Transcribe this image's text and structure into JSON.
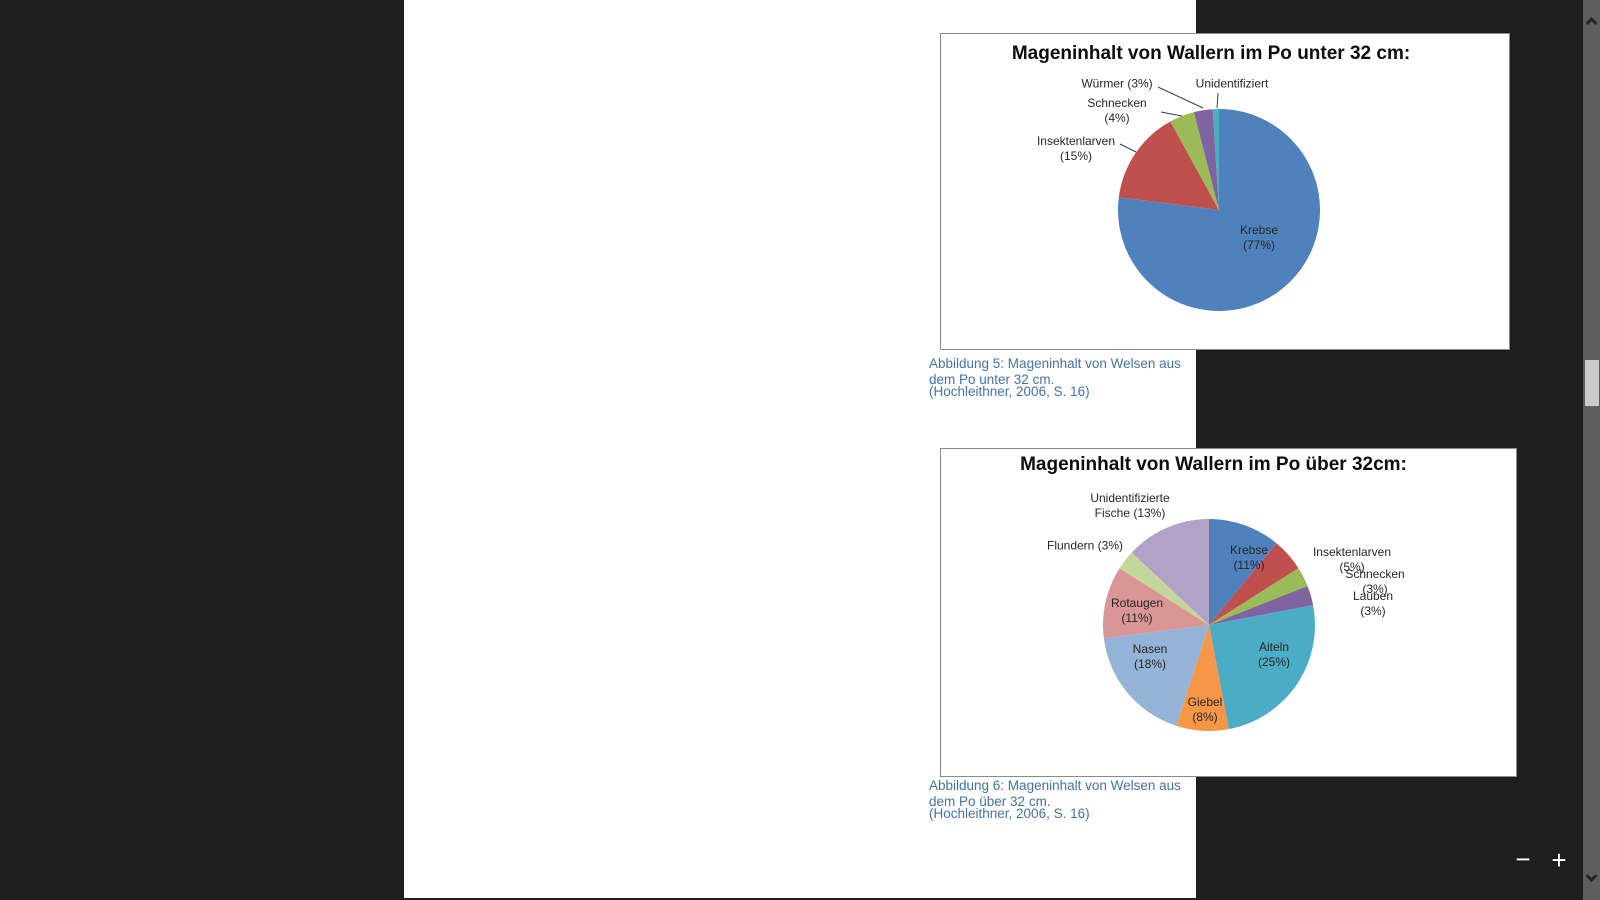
{
  "viewer": {
    "background_color": "#1e1e1e",
    "page_color": "#ffffff",
    "zoom_controls": {
      "zoom_out": "−",
      "zoom_in": "+"
    },
    "scrollbar": {
      "track_color": "#5e5e5e",
      "thumb_color": "#cbcbcb"
    }
  },
  "document": {
    "caption_color": "#4472a8",
    "captions": [
      {
        "title": "Abbildung 5: Mageninhalt von Welsen aus dem Po unter 32 cm.",
        "source": "(Hochleithner, 2006, S. 16)"
      },
      {
        "title": "Abbildung 6: Mageninhalt von Welsen aus dem Po über 32 cm.",
        "source": "(Hochleithner, 2006, S. 16)"
      }
    ]
  },
  "chart_data": [
    {
      "type": "pie",
      "title": "Mageninhalt von Wallern im Po unter 32 cm:",
      "unit": "%",
      "direction": "clockwise",
      "start_angle_deg": 0,
      "legend": "none",
      "slices": [
        {
          "label": "Krebse",
          "value": 77,
          "color": "#4F81BD"
        },
        {
          "label": "Insektenlarven",
          "value": 15,
          "color": "#C0504D"
        },
        {
          "label": "Schnecken",
          "value": 4,
          "color": "#9BBB59"
        },
        {
          "label": "Würmer",
          "value": 3,
          "color": "#8064A2"
        },
        {
          "label": "Unidentifiziert",
          "value": 1,
          "color": "#4BACC6"
        }
      ],
      "display_labels": [
        {
          "text": "Würmer (3%)"
        },
        {
          "text": "Unidentifiziert"
        },
        {
          "text": "Schnecken (4%)"
        },
        {
          "text": "Insektenlarven\n(15%)"
        },
        {
          "text": "Krebse (77%)"
        }
      ]
    },
    {
      "type": "pie",
      "title": "Mageninhalt von Wallern im Po über 32cm:",
      "unit": "%",
      "direction": "clockwise",
      "start_angle_deg": 0,
      "legend": "none",
      "slices": [
        {
          "label": "Krebse",
          "value": 11,
          "color": "#4F81BD"
        },
        {
          "label": "Insektenlarven",
          "value": 5,
          "color": "#C0504D"
        },
        {
          "label": "Schnecken",
          "value": 3,
          "color": "#9BBB59"
        },
        {
          "label": "Lauben",
          "value": 3,
          "color": "#8064A2"
        },
        {
          "label": "Aiteln",
          "value": 25,
          "color": "#4BACC6"
        },
        {
          "label": "Giebel",
          "value": 8,
          "color": "#F79646"
        },
        {
          "label": "Nasen",
          "value": 18,
          "color": "#95B3D7"
        },
        {
          "label": "Rotaugen",
          "value": 11,
          "color": "#D99694"
        },
        {
          "label": "Flundern",
          "value": 3,
          "color": "#C3D69B"
        },
        {
          "label": "Unidentifizierte Fische",
          "value": 13,
          "color": "#B2A2C7"
        }
      ],
      "display_labels": [
        {
          "text": "Unidentifizierte\nFische (13%)"
        },
        {
          "text": "Flundern (3%)"
        },
        {
          "text": "Rotaugen\n(11%)"
        },
        {
          "text": "Nasen (18%)"
        },
        {
          "text": "Giebel\n(8%)"
        },
        {
          "text": "Krebse\n(11%)"
        },
        {
          "text": "Insektenlarven\n(5%)"
        },
        {
          "text": "Schnecken (3%)"
        },
        {
          "text": "Lauben (3%)"
        },
        {
          "text": "Aiteln (25%)"
        }
      ]
    }
  ]
}
